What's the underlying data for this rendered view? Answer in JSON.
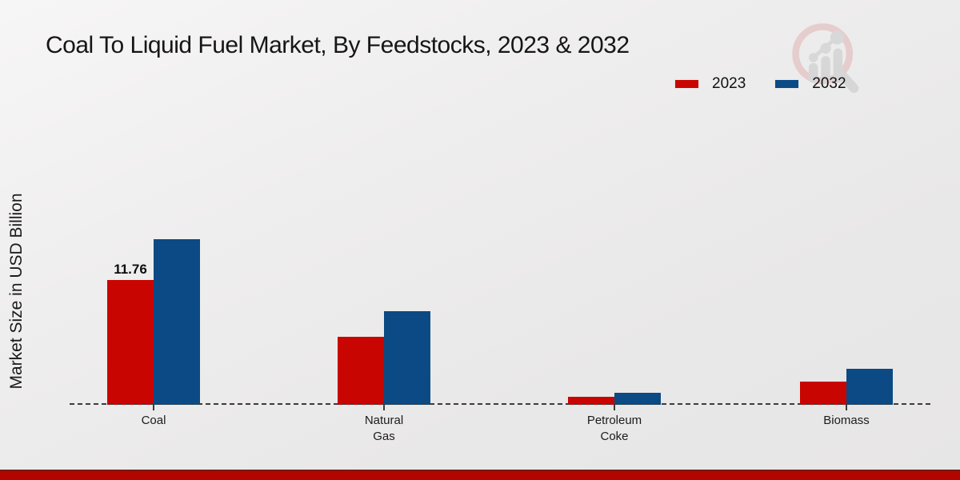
{
  "chart_data": {
    "type": "bar",
    "title": "Coal To Liquid Fuel Market, By Feedstocks, 2023 & 2032",
    "xlabel": "",
    "ylabel": "Market Size in USD Billion",
    "categories": [
      "Coal",
      "Natural Gas",
      "Petroleum Coke",
      "Biomass"
    ],
    "category_label_lines": [
      [
        "Coal"
      ],
      [
        "Natural",
        "Gas"
      ],
      [
        "Petroleum",
        "Coke"
      ],
      [
        "Biomass"
      ]
    ],
    "series": [
      {
        "name": "2023",
        "color": "#c90502",
        "values": [
          11.76,
          6.4,
          0.75,
          2.2
        ],
        "value_labels": [
          "11.76",
          "",
          "",
          ""
        ]
      },
      {
        "name": "2032",
        "color": "#0b4a84",
        "values": [
          15.6,
          8.8,
          1.1,
          3.4
        ],
        "value_labels": [
          "",
          "",
          "",
          ""
        ]
      }
    ],
    "ylim": [
      0,
      16
    ],
    "grid": false,
    "axis_style": "dashed-baseline-only",
    "legend_position": "top-right"
  },
  "legend": {
    "items": [
      {
        "label": "2023",
        "color": "#c90502"
      },
      {
        "label": "2032",
        "color": "#0b4a84"
      }
    ]
  },
  "footer": {
    "bar_color": "#b30500"
  },
  "watermark": {
    "name": "magnifier-bar-chart-logo",
    "ring_color": "#e2b4b4",
    "bar_color": "#c6c6c6"
  }
}
